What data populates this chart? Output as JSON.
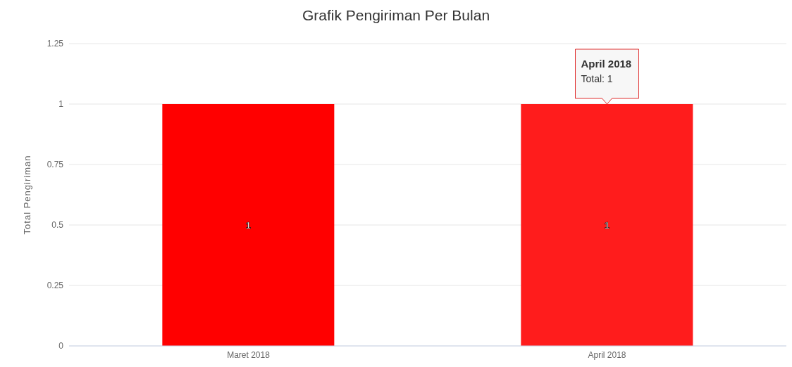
{
  "chart_data": {
    "type": "bar",
    "title": "Grafik Pengiriman Per Bulan",
    "ylabel": "Total Pengiriman",
    "categories": [
      "Maret 2018",
      "April 2018"
    ],
    "values": [
      1,
      1
    ],
    "colors": [
      "#ff0000",
      "#ff1c1c"
    ],
    "ylim": [
      0,
      1.25
    ],
    "yticks": [
      0,
      0.25,
      0.5,
      0.75,
      1,
      1.25
    ],
    "grid": "y",
    "data_labels": true,
    "annotations": [
      {
        "text": "April 2018\nTotal: 1",
        "x": "April 2018",
        "y": 1
      }
    ]
  }
}
